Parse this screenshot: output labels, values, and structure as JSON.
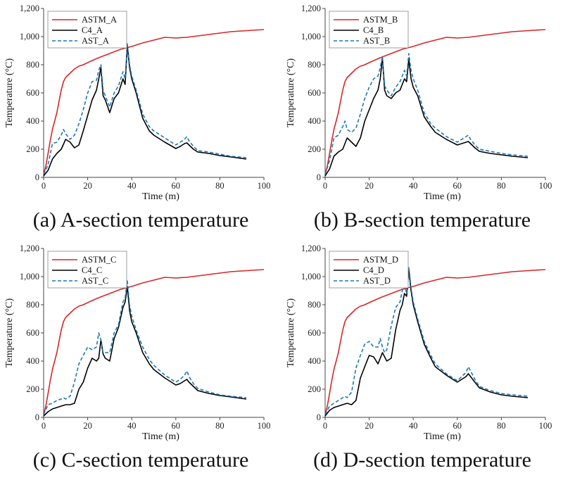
{
  "chart_data": [
    {
      "type": "line",
      "caption": "(a) A-section temperature",
      "xlabel": "Time (m)",
      "ylabel": "Temperature (°C)",
      "xlim": [
        0,
        100
      ],
      "ylim": [
        0,
        1200
      ],
      "xticks": [
        "0",
        "20",
        "40",
        "60",
        "80",
        "100"
      ],
      "yticks": [
        "0",
        "200",
        "400",
        "600",
        "800",
        "1,000",
        "1,200"
      ],
      "series": [
        {
          "name": "ASTM_A",
          "color": "#d62728",
          "dash": "solid",
          "x": [
            0,
            1,
            2,
            3,
            4,
            5,
            6,
            7,
            8,
            9,
            10,
            12,
            14,
            16,
            18,
            20,
            25,
            30,
            35,
            40,
            45,
            50,
            55,
            60,
            65,
            70,
            75,
            80,
            85,
            90,
            95,
            100
          ],
          "y": [
            20,
            80,
            170,
            260,
            340,
            400,
            460,
            540,
            620,
            680,
            710,
            740,
            770,
            790,
            800,
            815,
            850,
            880,
            910,
            930,
            955,
            975,
            995,
            990,
            995,
            1005,
            1015,
            1025,
            1035,
            1040,
            1045,
            1050
          ]
        },
        {
          "name": "C4_A",
          "color": "#000000",
          "dash": "solid",
          "x": [
            0,
            2,
            4,
            6,
            8,
            10,
            12,
            14,
            16,
            18,
            20,
            22,
            24,
            25,
            26,
            27,
            28,
            30,
            32,
            34,
            36,
            37,
            38,
            39,
            40,
            42,
            45,
            48,
            50,
            55,
            60,
            62,
            64,
            65,
            66,
            68,
            70,
            75,
            80,
            85,
            92
          ],
          "y": [
            10,
            50,
            130,
            170,
            200,
            270,
            250,
            210,
            230,
            330,
            440,
            550,
            620,
            700,
            780,
            580,
            550,
            460,
            560,
            600,
            700,
            660,
            940,
            780,
            700,
            600,
            420,
            330,
            300,
            250,
            205,
            220,
            240,
            245,
            230,
            200,
            180,
            170,
            155,
            145,
            130
          ]
        },
        {
          "name": "AST_A",
          "color": "#1f77b4",
          "dash": "dashed",
          "x": [
            0,
            2,
            4,
            6,
            8,
            9,
            10,
            12,
            14,
            16,
            18,
            20,
            22,
            24,
            25,
            26,
            27,
            28,
            30,
            32,
            34,
            36,
            37,
            38,
            39,
            40,
            42,
            45,
            48,
            50,
            55,
            60,
            62,
            64,
            65,
            66,
            68,
            70,
            75,
            80,
            85,
            92
          ],
          "y": [
            20,
            90,
            240,
            250,
            300,
            340,
            310,
            270,
            300,
            380,
            480,
            600,
            680,
            690,
            760,
            800,
            620,
            580,
            500,
            600,
            650,
            750,
            700,
            950,
            800,
            720,
            620,
            450,
            360,
            330,
            280,
            230,
            250,
            270,
            290,
            260,
            220,
            190,
            180,
            165,
            150,
            140
          ]
        }
      ]
    },
    {
      "type": "line",
      "caption": "(b) B-section temperature",
      "xlabel": "Time (m)",
      "ylabel": "Temperature (°C)",
      "xlim": [
        0,
        100
      ],
      "ylim": [
        0,
        1200
      ],
      "xticks": [
        "0",
        "20",
        "40",
        "60",
        "80",
        "100"
      ],
      "yticks": [
        "0",
        "200",
        "400",
        "600",
        "800",
        "1,000",
        "1,200"
      ],
      "series": [
        {
          "name": "ASTM_B",
          "color": "#d62728",
          "dash": "solid",
          "x": [
            0,
            1,
            2,
            3,
            4,
            5,
            6,
            7,
            8,
            9,
            10,
            12,
            14,
            16,
            18,
            20,
            25,
            30,
            35,
            40,
            45,
            50,
            55,
            60,
            65,
            70,
            75,
            80,
            85,
            90,
            95,
            100
          ],
          "y": [
            20,
            80,
            170,
            260,
            340,
            400,
            460,
            540,
            620,
            680,
            710,
            740,
            770,
            790,
            800,
            815,
            850,
            880,
            910,
            930,
            955,
            975,
            995,
            990,
            995,
            1005,
            1015,
            1025,
            1035,
            1040,
            1045,
            1050
          ]
        },
        {
          "name": "C4_B",
          "color": "#000000",
          "dash": "solid",
          "x": [
            0,
            2,
            4,
            6,
            8,
            10,
            12,
            14,
            16,
            18,
            20,
            22,
            24,
            25,
            26,
            27,
            28,
            30,
            32,
            34,
            36,
            37,
            38,
            39,
            40,
            42,
            45,
            48,
            50,
            55,
            60,
            62,
            64,
            65,
            66,
            68,
            70,
            75,
            80,
            85,
            92
          ],
          "y": [
            10,
            60,
            150,
            180,
            200,
            280,
            250,
            220,
            280,
            400,
            480,
            560,
            620,
            700,
            850,
            620,
            580,
            560,
            600,
            620,
            700,
            680,
            840,
            700,
            640,
            580,
            430,
            360,
            320,
            270,
            230,
            240,
            250,
            255,
            240,
            210,
            185,
            170,
            160,
            150,
            140
          ]
        },
        {
          "name": "AST_B",
          "color": "#1f77b4",
          "dash": "dashed",
          "x": [
            0,
            2,
            4,
            6,
            8,
            9,
            10,
            12,
            14,
            16,
            18,
            20,
            22,
            24,
            25,
            26,
            27,
            28,
            30,
            32,
            34,
            36,
            37,
            38,
            39,
            40,
            42,
            45,
            48,
            50,
            55,
            60,
            62,
            64,
            65,
            66,
            68,
            70,
            75,
            80,
            85,
            92
          ],
          "y": [
            20,
            120,
            280,
            300,
            360,
            400,
            340,
            320,
            350,
            450,
            560,
            640,
            700,
            720,
            780,
            860,
            650,
            620,
            580,
            640,
            680,
            760,
            720,
            880,
            760,
            700,
            620,
            460,
            380,
            350,
            290,
            250,
            270,
            290,
            300,
            270,
            230,
            200,
            185,
            170,
            160,
            150
          ]
        }
      ]
    },
    {
      "type": "line",
      "caption": "(c) C-section temperature",
      "xlabel": "Time (m)",
      "ylabel": "Temperature (°C)",
      "xlim": [
        0,
        100
      ],
      "ylim": [
        0,
        1200
      ],
      "xticks": [
        "0",
        "20",
        "40",
        "60",
        "80",
        "100"
      ],
      "yticks": [
        "0",
        "200",
        "400",
        "600",
        "800",
        "1,000",
        "1,200"
      ],
      "series": [
        {
          "name": "ASTM_C",
          "color": "#d62728",
          "dash": "solid",
          "x": [
            0,
            1,
            2,
            3,
            4,
            5,
            6,
            7,
            8,
            9,
            10,
            12,
            14,
            16,
            18,
            20,
            25,
            30,
            35,
            40,
            45,
            50,
            55,
            60,
            65,
            70,
            75,
            80,
            85,
            90,
            95,
            100
          ],
          "y": [
            20,
            80,
            170,
            260,
            340,
            400,
            460,
            540,
            620,
            680,
            710,
            740,
            770,
            790,
            800,
            815,
            850,
            880,
            910,
            930,
            955,
            975,
            995,
            990,
            995,
            1005,
            1015,
            1025,
            1035,
            1040,
            1045,
            1050
          ]
        },
        {
          "name": "C4_C",
          "color": "#000000",
          "dash": "solid",
          "x": [
            0,
            2,
            4,
            6,
            8,
            10,
            12,
            14,
            16,
            18,
            20,
            22,
            24,
            25,
            26,
            27,
            28,
            30,
            32,
            34,
            36,
            37,
            38,
            39,
            40,
            42,
            45,
            48,
            50,
            55,
            60,
            62,
            64,
            65,
            66,
            68,
            70,
            75,
            80,
            85,
            92
          ],
          "y": [
            10,
            40,
            60,
            70,
            80,
            90,
            90,
            100,
            200,
            250,
            350,
            420,
            400,
            420,
            550,
            450,
            420,
            400,
            560,
            640,
            780,
            820,
            930,
            760,
            680,
            600,
            460,
            380,
            340,
            280,
            230,
            240,
            260,
            270,
            250,
            220,
            190,
            170,
            155,
            145,
            130
          ]
        },
        {
          "name": "AST_C",
          "color": "#1f77b4",
          "dash": "dashed",
          "x": [
            0,
            2,
            4,
            6,
            8,
            9,
            10,
            12,
            14,
            16,
            18,
            20,
            22,
            24,
            25,
            26,
            27,
            28,
            30,
            32,
            34,
            36,
            37,
            38,
            39,
            40,
            42,
            45,
            48,
            50,
            55,
            60,
            62,
            64,
            65,
            66,
            68,
            70,
            75,
            80,
            85,
            92
          ],
          "y": [
            20,
            90,
            100,
            120,
            130,
            140,
            130,
            150,
            250,
            380,
            440,
            500,
            480,
            500,
            600,
            550,
            460,
            460,
            460,
            600,
            660,
            820,
            850,
            970,
            800,
            720,
            620,
            500,
            410,
            370,
            300,
            250,
            270,
            300,
            330,
            290,
            240,
            205,
            180,
            160,
            150,
            140
          ]
        }
      ]
    },
    {
      "type": "line",
      "caption": "(d) D-section temperature",
      "xlabel": "Time (m)",
      "ylabel": "Temperature (°C)",
      "xlim": [
        0,
        100
      ],
      "ylim": [
        0,
        1200
      ],
      "xticks": [
        "0",
        "20",
        "40",
        "60",
        "80",
        "100"
      ],
      "yticks": [
        "0",
        "200",
        "400",
        "600",
        "800",
        "1,000",
        "1,200"
      ],
      "series": [
        {
          "name": "ASTM_D",
          "color": "#d62728",
          "dash": "solid",
          "x": [
            0,
            1,
            2,
            3,
            4,
            5,
            6,
            7,
            8,
            9,
            10,
            12,
            14,
            16,
            18,
            20,
            25,
            30,
            35,
            40,
            45,
            50,
            55,
            60,
            65,
            70,
            75,
            80,
            85,
            90,
            95,
            100
          ],
          "y": [
            20,
            80,
            170,
            260,
            340,
            400,
            460,
            540,
            620,
            680,
            710,
            740,
            770,
            790,
            800,
            815,
            850,
            880,
            910,
            930,
            955,
            975,
            995,
            990,
            995,
            1005,
            1015,
            1025,
            1035,
            1040,
            1045,
            1050
          ]
        },
        {
          "name": "C4_D",
          "color": "#000000",
          "dash": "solid",
          "x": [
            0,
            2,
            4,
            6,
            8,
            10,
            12,
            14,
            16,
            18,
            20,
            22,
            24,
            25,
            26,
            27,
            28,
            30,
            32,
            34,
            35,
            36,
            37,
            38,
            39,
            40,
            42,
            45,
            48,
            50,
            55,
            60,
            62,
            64,
            65,
            66,
            68,
            70,
            75,
            80,
            85,
            92
          ],
          "y": [
            10,
            50,
            70,
            80,
            90,
            100,
            90,
            120,
            280,
            360,
            440,
            430,
            380,
            420,
            460,
            430,
            400,
            420,
            620,
            760,
            800,
            880,
            860,
            1050,
            900,
            800,
            680,
            520,
            420,
            360,
            300,
            250,
            270,
            290,
            310,
            290,
            250,
            210,
            180,
            160,
            150,
            140
          ]
        },
        {
          "name": "AST_D",
          "color": "#1f77b4",
          "dash": "dashed",
          "x": [
            0,
            2,
            4,
            6,
            8,
            9,
            10,
            12,
            14,
            16,
            18,
            20,
            22,
            24,
            25,
            26,
            27,
            28,
            30,
            32,
            34,
            35,
            36,
            37,
            38,
            39,
            40,
            42,
            45,
            48,
            50,
            55,
            60,
            62,
            64,
            65,
            66,
            68,
            70,
            75,
            80,
            85,
            92
          ],
          "y": [
            20,
            80,
            100,
            120,
            140,
            150,
            140,
            180,
            350,
            440,
            520,
            540,
            500,
            500,
            560,
            500,
            460,
            480,
            650,
            780,
            820,
            900,
            940,
            880,
            1070,
            920,
            820,
            700,
            540,
            440,
            380,
            310,
            260,
            290,
            320,
            360,
            330,
            270,
            220,
            190,
            170,
            160,
            150
          ]
        }
      ]
    }
  ]
}
